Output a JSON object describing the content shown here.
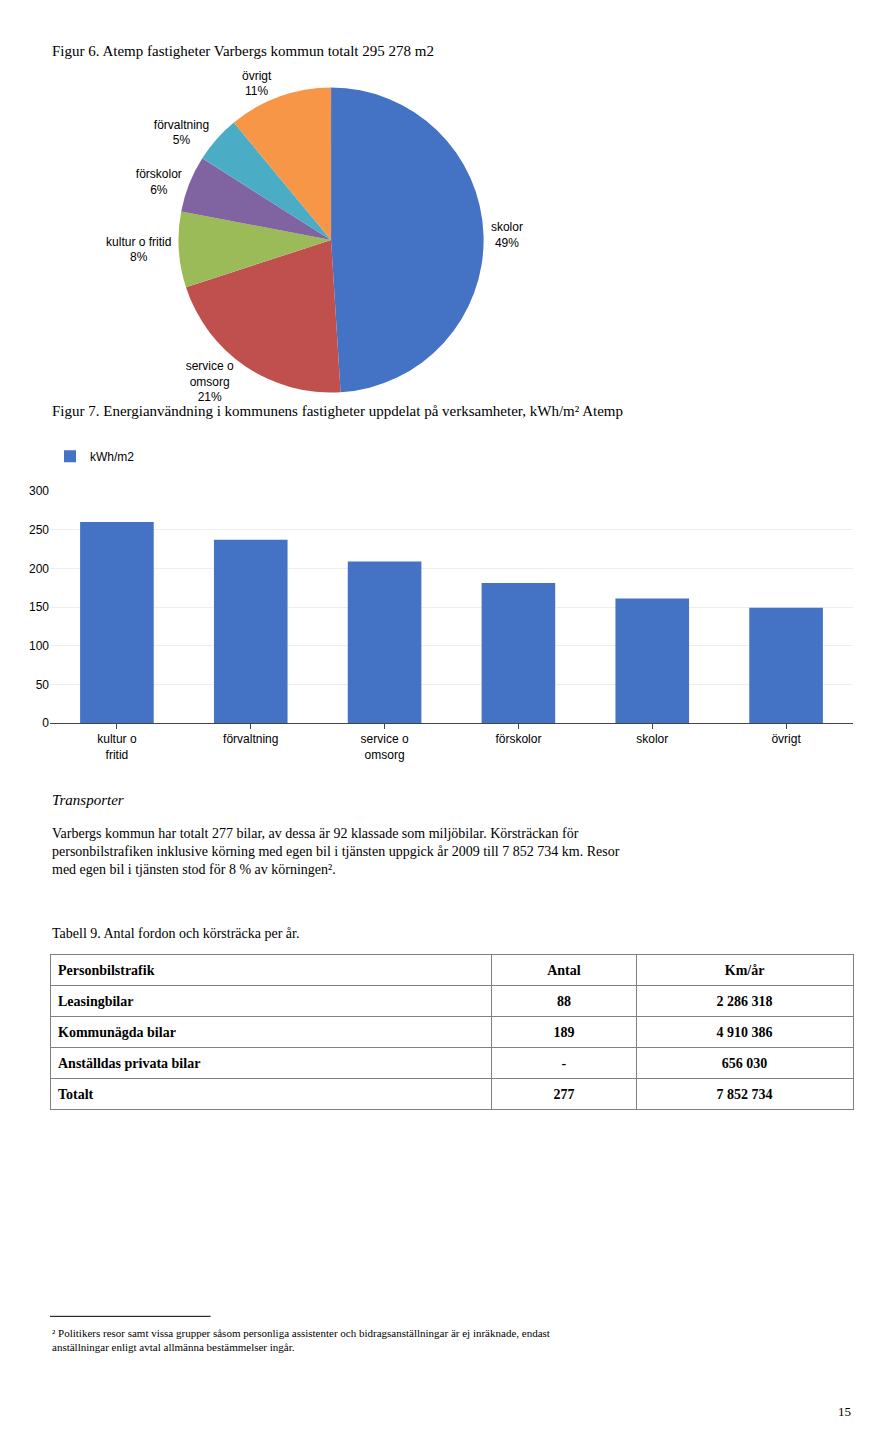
{
  "chart_data": [
    {
      "type": "pie",
      "title": "Figur 6. Atemp fastigheter Varbergs kommun totalt 295 278 m2",
      "categories": [
        "skolor",
        "service o\nomsorg",
        "kultur o fritid",
        "förskolor",
        "förvaltning",
        "övrigt"
      ],
      "values": [
        49,
        21,
        8,
        6,
        5,
        11
      ],
      "value_labels": [
        "49%",
        "21%",
        "8%",
        "6%",
        "5%",
        "11%"
      ],
      "colors": [
        "#4472C4",
        "#C0504D",
        "#9BBB59",
        "#8064A2",
        "#4BACC6",
        "#F79646"
      ]
    },
    {
      "type": "bar",
      "title": "Figur 7. Energianvändning i kommunens fastigheter uppdelat på verksamheter, kWh/m² Atemp",
      "categories": [
        "kultur o\nfritid",
        "förvaltning",
        "service o\nomsorg",
        "förskolor",
        "skolor",
        "övrigt"
      ],
      "series": [
        {
          "name": "kWh/m2",
          "color": "#4472C4",
          "values": [
            260,
            237,
            209,
            181,
            161,
            149
          ]
        }
      ],
      "ylim": [
        0,
        300
      ],
      "yticks": [
        0,
        50,
        100,
        150,
        200,
        250,
        300
      ],
      "grid": true,
      "legend": "upper left"
    },
    {
      "type": "text",
      "title": "Transporter",
      "text": "Varbergs kommun har totalt 277 bilar, av dessa är 92 klassade som miljöbilar. Körsträckan för\npersonbilstrafiken inklusive körning med egen bil i tjänsten uppgick år 2009 till 7 852 734 km. Resor\nmed egen bil i tjänsten stod för 8 % av körningen²."
    },
    {
      "type": "table",
      "title": "Tabell 9. Antal fordon och körsträcka per år.",
      "columns": [
        "Personbilstrafik",
        "Antal",
        "Km/år"
      ],
      "rows": [
        [
          "Leasingbilar",
          "88",
          "2 286 318"
        ],
        [
          "Kommunägda bilar",
          "189",
          "4 910 386"
        ],
        [
          "Anställdas privata bilar",
          "-",
          "656 030"
        ],
        [
          "Totalt",
          "277",
          "7 852 734"
        ]
      ]
    },
    {
      "type": "footnote",
      "text": "² Politikers resor samt vissa grupper såsom personliga assistenter och bidragsanställningar är ej inräknade, endast\nanställningar enligt avtal allmänna bestämmelser ingår.",
      "page_number": "15"
    }
  ]
}
